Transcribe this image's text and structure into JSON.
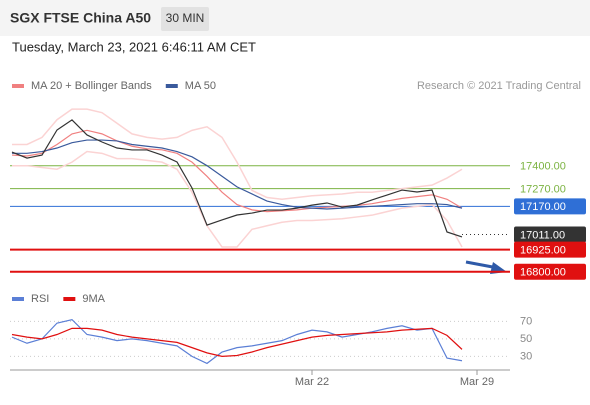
{
  "header": {
    "title": "SGX FTSE China A50",
    "timeframe": "30 MIN",
    "datetime": "Tuesday, March 23, 2021 6:46:11 AM CET",
    "credit": "Research © 2021 Trading Central"
  },
  "chart_data": [
    {
      "type": "line",
      "categories": [
        null,
        null,
        null,
        null,
        null,
        null,
        null,
        null,
        null,
        null,
        null,
        null,
        null,
        null,
        null,
        null,
        null,
        null,
        null,
        null,
        "Mar 22",
        null,
        null,
        null,
        null,
        null,
        null,
        null,
        null,
        null,
        null,
        "Mar 29"
      ],
      "ylim": [
        16700,
        17800
      ],
      "series": [
        {
          "name": "MA 20 + Bollinger Bands",
          "color": "#f08080",
          "values": [
            17460,
            17455,
            17470,
            17520,
            17580,
            17600,
            17580,
            17540,
            17510,
            17495,
            17490,
            17470,
            17420,
            17340,
            17250,
            17180,
            17150,
            17140,
            17145,
            17150,
            17160,
            17165,
            17170,
            17175,
            17185,
            17200,
            17215,
            17225,
            17235,
            17210,
            17160,
            null
          ]
        },
        {
          "color": "#fbd3d3",
          "values": [
            17520,
            17520,
            17560,
            17660,
            17720,
            17720,
            17700,
            17640,
            17580,
            17560,
            17550,
            17560,
            17600,
            17620,
            17560,
            17420,
            17260,
            17220,
            17210,
            17220,
            17230,
            17235,
            17240,
            17250,
            17250,
            17260,
            17270,
            17280,
            17290,
            17330,
            17380,
            null
          ]
        },
        {
          "color": "#fbd3d3",
          "values": [
            17400,
            17400,
            17390,
            17380,
            17420,
            17480,
            17470,
            17440,
            17440,
            17430,
            17420,
            17380,
            17250,
            17060,
            16940,
            16940,
            17040,
            17060,
            17080,
            17090,
            17090,
            17095,
            17100,
            17110,
            17120,
            17140,
            17160,
            17170,
            17180,
            17090,
            16940,
            null
          ]
        },
        {
          "name": "MA 50",
          "color": "#3a5a9c",
          "values": [
            17470,
            17470,
            17480,
            17500,
            17530,
            17545,
            17545,
            17540,
            17520,
            17510,
            17500,
            17480,
            17450,
            17400,
            17340,
            17280,
            17240,
            17200,
            17180,
            17165,
            17160,
            17155,
            17160,
            17165,
            17170,
            17175,
            17180,
            17185,
            17185,
            17180,
            17160,
            null
          ]
        },
        {
          "color": "#333333",
          "values": [
            17477,
            17443,
            17460,
            17602,
            17659,
            17574,
            17534,
            17500,
            17489,
            17489,
            17460,
            17421,
            17274,
            17064,
            17093,
            17121,
            17132,
            17149,
            17149,
            17160,
            17177,
            17189,
            17166,
            17177,
            17206,
            17234,
            17262,
            17251,
            17262,
            17025,
            16997,
            null
          ]
        }
      ],
      "levels": [
        {
          "value": 17400,
          "label": "17400.00",
          "color": "#7cb342",
          "boxed": false
        },
        {
          "value": 17270,
          "label": "17270.00",
          "color": "#7cb342",
          "boxed": false
        },
        {
          "value": 17170,
          "label": "17170.00",
          "color": "#2f6fd6",
          "boxed": true
        },
        {
          "value": 17011,
          "label": "17011.00",
          "color": "#333333",
          "boxed": true,
          "dotted": true
        },
        {
          "value": 16925,
          "label": "16925.00",
          "color": "#e01010",
          "boxed": true
        },
        {
          "value": 16800,
          "label": "16800.00",
          "color": "#e01010",
          "boxed": true
        }
      ]
    },
    {
      "type": "line",
      "ylim": [
        15,
        83
      ],
      "yticks": [
        30,
        50,
        70
      ],
      "series": [
        {
          "name": "RSI",
          "color": "#5b7fd6",
          "values": [
            52,
            45,
            50,
            68,
            72,
            55,
            52,
            48,
            50,
            48,
            45,
            42,
            30,
            22,
            35,
            40,
            42,
            45,
            48,
            55,
            60,
            58,
            52,
            55,
            58,
            62,
            65,
            60,
            62,
            28,
            25,
            null
          ]
        },
        {
          "name": "9MA",
          "color": "#e01010",
          "values": [
            55,
            52,
            50,
            55,
            62,
            62,
            60,
            55,
            52,
            50,
            48,
            46,
            40,
            34,
            30,
            31,
            35,
            40,
            44,
            48,
            52,
            54,
            55,
            56,
            57,
            58,
            60,
            61,
            62,
            54,
            38,
            null
          ]
        }
      ]
    }
  ]
}
